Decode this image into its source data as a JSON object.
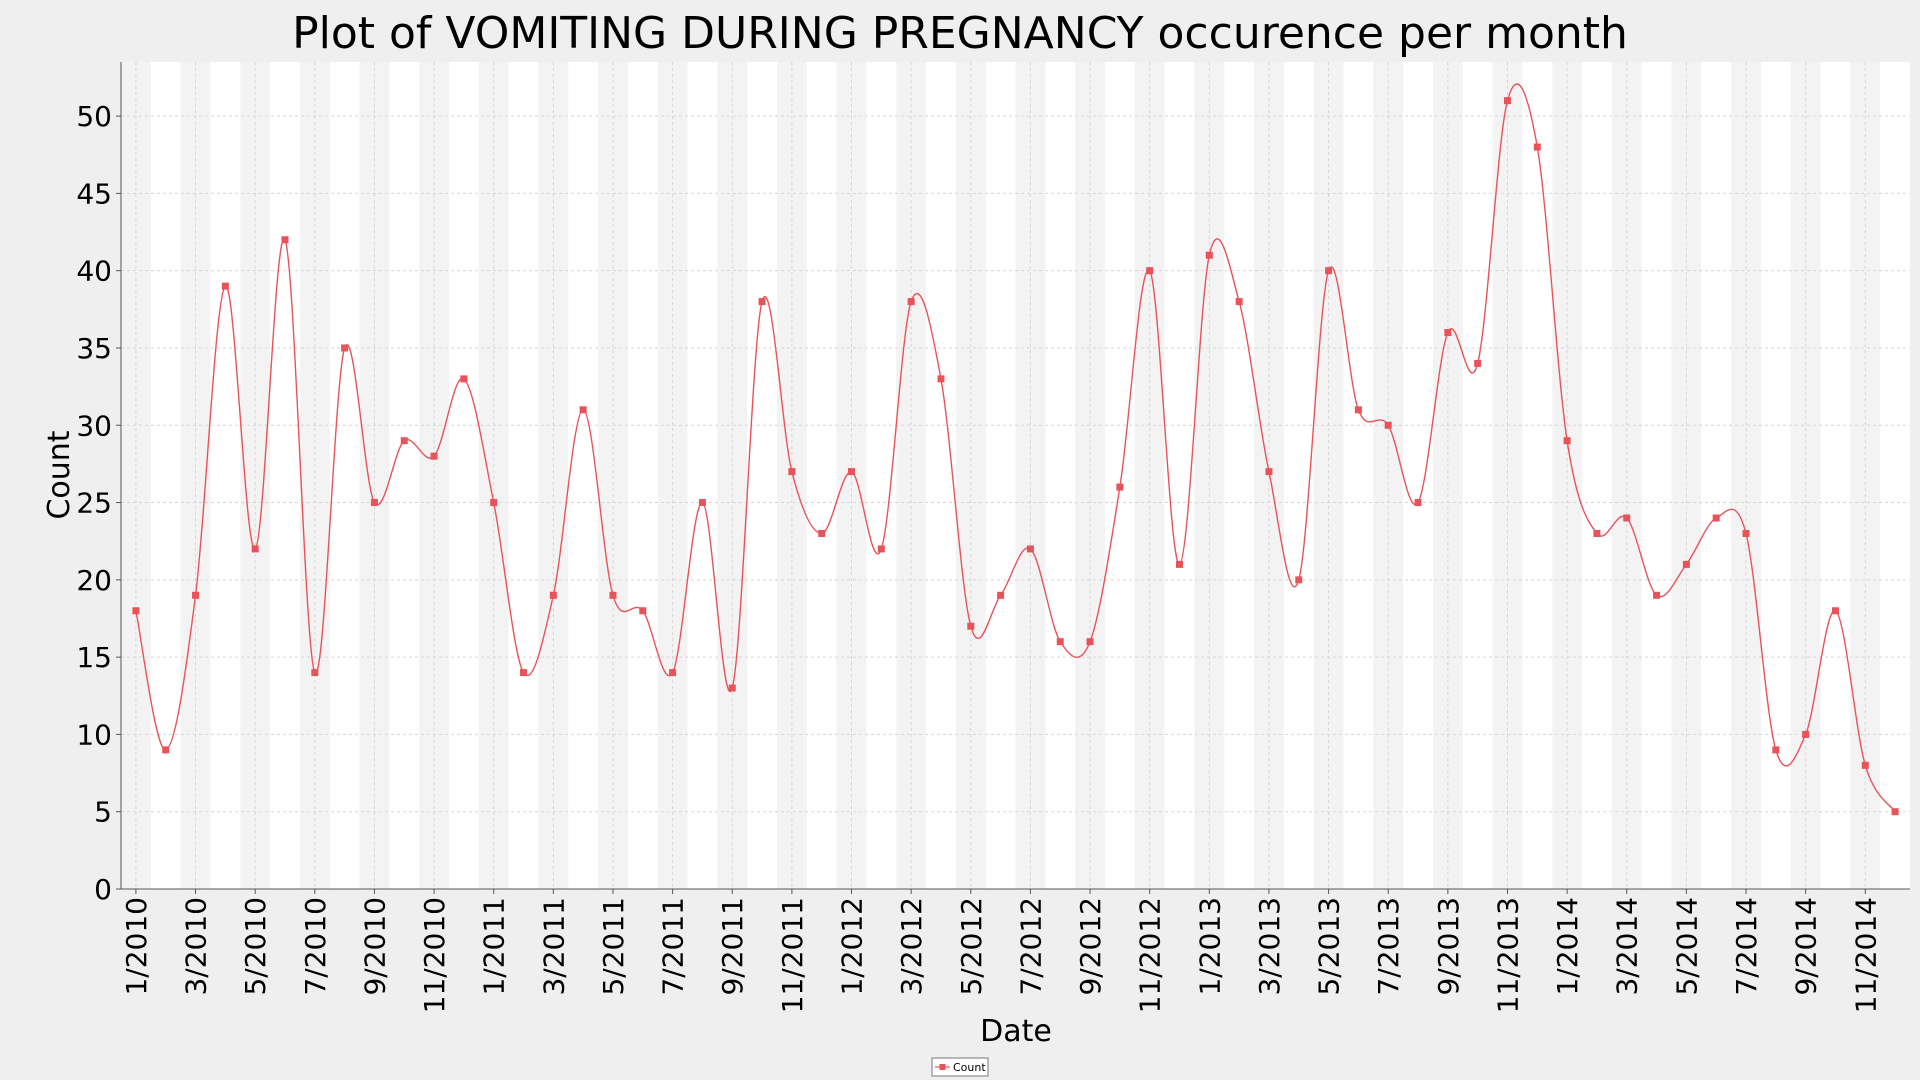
{
  "chart_data": {
    "type": "line",
    "title": "Plot of VOMITING DURING PREGNANCY occurence per month",
    "xlabel": "Date",
    "ylabel": "Count",
    "ylim": [
      0,
      53.5
    ],
    "y_ticks": [
      0,
      5,
      10,
      15,
      20,
      25,
      30,
      35,
      40,
      45,
      50
    ],
    "x_tick_labels": [
      "1/2010",
      "3/2010",
      "5/2010",
      "7/2010",
      "9/2010",
      "11/2010",
      "1/2011",
      "3/2011",
      "5/2011",
      "7/2011",
      "9/2011",
      "11/2011",
      "1/2012",
      "3/2012",
      "5/2012",
      "7/2012",
      "9/2012",
      "11/2012",
      "1/2013",
      "3/2013",
      "5/2013",
      "7/2013",
      "9/2013",
      "11/2013",
      "1/2014",
      "3/2014",
      "5/2014",
      "7/2014",
      "9/2014",
      "11/2014"
    ],
    "grid": true,
    "legend_position": "bottom-center",
    "series_color": "#e8535a",
    "series": [
      {
        "name": "Count",
        "x": [
          "2010-01",
          "2010-02",
          "2010-03",
          "2010-04",
          "2010-05",
          "2010-06",
          "2010-07",
          "2010-08",
          "2010-09",
          "2010-10",
          "2010-11",
          "2010-12",
          "2011-01",
          "2011-02",
          "2011-03",
          "2011-04",
          "2011-05",
          "2011-06",
          "2011-07",
          "2011-08",
          "2011-09",
          "2011-10",
          "2011-11",
          "2011-12",
          "2012-01",
          "2012-02",
          "2012-03",
          "2012-04",
          "2012-05",
          "2012-06",
          "2012-07",
          "2012-08",
          "2012-09",
          "2012-10",
          "2012-11",
          "2012-12",
          "2013-01",
          "2013-02",
          "2013-03",
          "2013-04",
          "2013-05",
          "2013-06",
          "2013-07",
          "2013-08",
          "2013-09",
          "2013-10",
          "2013-11",
          "2013-12",
          "2014-01",
          "2014-02",
          "2014-03",
          "2014-04",
          "2014-05",
          "2014-06",
          "2014-07",
          "2014-08",
          "2014-09",
          "2014-10",
          "2014-11",
          "2014-12"
        ],
        "values": [
          18,
          9,
          19,
          39,
          22,
          42,
          14,
          35,
          25,
          29,
          28,
          33,
          25,
          14,
          19,
          31,
          19,
          18,
          14,
          25,
          13,
          38,
          27,
          23,
          27,
          22,
          38,
          33,
          17,
          19,
          22,
          16,
          16,
          26,
          40,
          21,
          41,
          38,
          27,
          20,
          40,
          31,
          30,
          25,
          36,
          34,
          51,
          48,
          29,
          23,
          24,
          19,
          21,
          24,
          23,
          9,
          10,
          18,
          8,
          5
        ]
      }
    ]
  }
}
